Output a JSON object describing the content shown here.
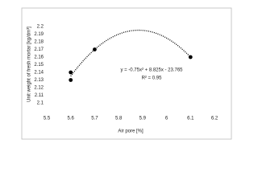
{
  "chart_data": {
    "type": "scatter",
    "x_label": "Air pore [%]",
    "y_label": "Unit weight of fresh mortar [kg/dm³]",
    "x": [
      5.6,
      5.6,
      5.7,
      6.1
    ],
    "values": [
      2.14,
      2.13,
      2.17,
      2.16
    ],
    "color": "#000000",
    "xlim": [
      5.5,
      6.2
    ],
    "xticks": [
      5.5,
      5.6,
      5.7,
      5.8,
      5.9,
      6,
      6.1,
      6.2
    ],
    "ylim": [
      2.1,
      2.2
    ],
    "yticks": [
      2.1,
      2.11,
      2.12,
      2.13,
      2.14,
      2.15,
      2.16,
      2.17,
      2.18,
      2.19,
      2.2
    ],
    "trendline": {
      "equation": "y = -0.75x² + 8.825x - 23.765",
      "r_squared": "R² = 0.95",
      "coefficients": [
        -0.75,
        8.825,
        -23.765
      ]
    }
  }
}
